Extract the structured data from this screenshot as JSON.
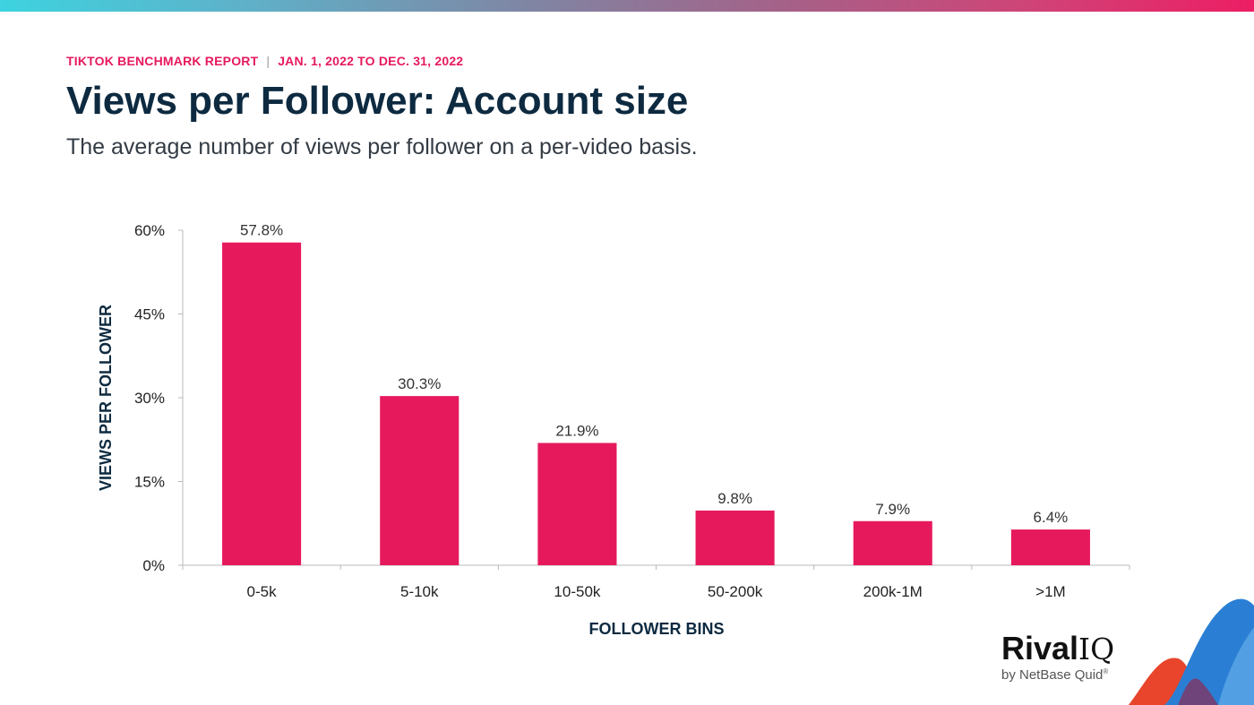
{
  "header": {
    "report_name": "TIKTOK BENCHMARK REPORT",
    "separator": "|",
    "date_range": "JAN. 1, 2022 TO DEC. 31, 2022",
    "title": "Views per Follower: Account size",
    "subtitle": "The average number of views per follower on a per-video basis."
  },
  "chart_data": {
    "type": "bar",
    "categories": [
      "0-5k",
      "5-10k",
      "10-50k",
      "50-200k",
      "200k-1M",
      ">1M"
    ],
    "values": [
      57.8,
      30.3,
      21.9,
      9.8,
      7.9,
      6.4
    ],
    "data_labels": [
      "57.8%",
      "30.3%",
      "21.9%",
      "9.8%",
      "7.9%",
      "6.4%"
    ],
    "yticks": [
      0,
      15,
      30,
      45,
      60
    ],
    "ytick_labels": [
      "0%",
      "15%",
      "30%",
      "45%",
      "60%"
    ],
    "ylim": [
      0,
      60
    ],
    "xlabel": "FOLLOWER BINS",
    "ylabel": "VIEWS PER FOLLOWER",
    "bar_color": "#e6195c",
    "grid": false,
    "legend": "none"
  },
  "brand": {
    "logo_word": "Rival",
    "logo_suffix": "IQ",
    "byline": "by NetBase Quid",
    "trademark": "®",
    "accent_colors": [
      "#2a7fd4",
      "#e8452c",
      "#7a3a6a"
    ]
  }
}
